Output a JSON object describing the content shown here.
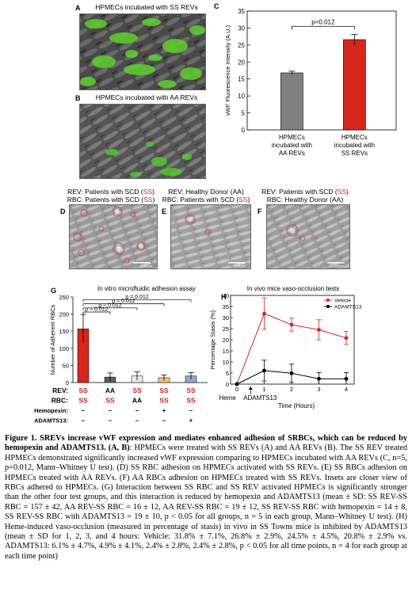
{
  "panels": {
    "A": {
      "label": "A",
      "title": "HPMECs incubated with SS REVs"
    },
    "B": {
      "label": "B",
      "title": "HPMECs incubated with AA REVs"
    },
    "D": {
      "label": "D",
      "line1_pre": "REV: Patients with SCD (",
      "line1_tag": "SS",
      "line1_post": ")",
      "line2_pre": "RBC: Patients with SCD (",
      "line2_tag": "SS",
      "line2_post": ")",
      "scale": "100 µm"
    },
    "E": {
      "label": "E",
      "line1_pre": "REV: Healthy Donor (",
      "line1_tag": "AA",
      "line1_post": ")",
      "line2_pre": "RBC: Patients with SCD (",
      "line2_tag": "SS",
      "line2_post": ")",
      "scale": "100 µm"
    },
    "F": {
      "label": "F",
      "line1_pre": "REV: Patients with SCD (",
      "line1_tag": "SS",
      "line1_post": ")",
      "line2_pre": "RBC: Healthy Donor (",
      "line2_tag": "AA",
      "line2_post": ")",
      "scale": "100 µm"
    }
  },
  "chart_data": [
    {
      "id": "C",
      "label": "C",
      "type": "bar",
      "ylabel": "vWF Fluorescence Intensity (A.U.)",
      "ylim": [
        0,
        35
      ],
      "yticks": [
        0,
        5,
        10,
        15,
        20,
        25,
        30,
        35
      ],
      "categories": [
        [
          "HPMECs",
          "incubated with",
          "AA REVs"
        ],
        [
          "HPMECs",
          "incubated with",
          "SS REVs"
        ]
      ],
      "values": [
        16.8,
        26.6
      ],
      "errors": [
        0.5,
        1.5
      ],
      "colors": [
        "#808080",
        "#d9241b"
      ],
      "annotations": [
        "p=0.012"
      ]
    },
    {
      "id": "G",
      "label": "G",
      "type": "bar",
      "title": "In vitro microfluidic adhesion assay",
      "ylabel": "Number of Adherent RBCs",
      "ylim": [
        0,
        250
      ],
      "yticks": [
        0,
        50,
        100,
        150,
        200,
        250
      ],
      "values": [
        157,
        16,
        19,
        14,
        19
      ],
      "errors": [
        42,
        12,
        12,
        8,
        10
      ],
      "colors": [
        "#d9241b",
        "#606060",
        "#e8e8e8",
        "#f1c27d",
        "#8fa8d6"
      ],
      "pvalues": [
        "p = 0.012",
        "p = 0.012",
        "p = 0.012",
        "p = 0.012"
      ],
      "rows": [
        {
          "name": "REV:",
          "values": [
            "SS",
            "AA",
            "SS",
            "SS",
            "SS"
          ],
          "red": [
            true,
            false,
            true,
            true,
            true
          ]
        },
        {
          "name": "RBC:",
          "values": [
            "SS",
            "SS",
            "AA",
            "SS",
            "SS"
          ],
          "red": [
            true,
            true,
            false,
            true,
            true
          ]
        },
        {
          "name": "Hemopexin:",
          "values": [
            "–",
            "–",
            "–",
            "+",
            "–"
          ]
        },
        {
          "name": "ADAMTS13:",
          "values": [
            "–",
            "–",
            "–",
            "–",
            "+"
          ]
        }
      ]
    },
    {
      "id": "H",
      "label": "H",
      "type": "line",
      "title": "In vivo mice vaso-occlusion tests",
      "ylabel": "Percentage Stasis (%)",
      "xlabel": "Time (Hours)",
      "ylim": [
        0,
        40
      ],
      "yticks": [
        0,
        5,
        10,
        15,
        20,
        25,
        30,
        35,
        40
      ],
      "xlim": [
        0,
        4
      ],
      "x": [
        0,
        1,
        2,
        3,
        4
      ],
      "series": [
        {
          "name": "Vehicle",
          "color": "#d9241b",
          "values": [
            0,
            31.8,
            26.8,
            24.5,
            20.8
          ],
          "errors": [
            0,
            7.1,
            2.9,
            4.5,
            2.9
          ]
        },
        {
          "name": "ADAMTS13",
          "color": "#000000",
          "values": [
            0,
            6.1,
            4.9,
            2.4,
            2.4
          ],
          "errors": [
            0,
            4.7,
            4.1,
            2.8,
            2.8
          ]
        }
      ],
      "annotations": [
        "Heme",
        "ADAMTS13"
      ],
      "legend": "top-right"
    }
  ],
  "caption": {
    "title": "Figure 1. SREVs increase vWF expression and mediates enhanced adhesion of SRBCs, which can be reduced by hemopexin and ADAMTS13. (A, B)",
    "body": ": HPMECs were treated with SS REVs (A) and AA REVs (B). The SS REV treated HPMECs demonstrated significantly increased vWF expression comparing to HPMECs incubated with AA REVs (C, n=5, p=0.012, Mann–Whitney U test). (D) SS RBC adhesion on HPMECs activated with SS REVs. (E) SS RBCs adhesion on HPMECs treated with AA REVs. (F) AA RBCs adhesion on HPMECs treated with SS REVs. Insets are closer view of RBCs adhered to HPMECs. (G) Interaction between SS RBC and SS REV activated HPMECs is significantly stronger than the other four test groups, and this interaction is reduced by hemopexin and ADAMTS13 (mean ± SD: SS REV-SS RBC = 157 ± 42, AA REV-SS RBC = 16 ± 12, AA REV-SS RBC = 19 ± 12, SS REV-SS RBC with hemopexin = 14 ± 8, SS REV-SS RBC with ADAMTS13 = 19 ± 10, p < 0.05 for all groups, n = 5 in each group, Mann–Whitney U test). (H) Heme-induced vaso-occlusion (measured in percentage of stasis) in vivo in SS Towns mice is inhibited by ADAMTS13 (mean ± SD for 1, 2, 3, and 4 hours: Vehicle: 31.8% ± 7.1%, 26.8% ± 2.9%, 24.5% ± 4.5%, 20.8% ± 2.9% vs. ADAMTS13: 6.1% ± 4.7%, 4.9% ± 4.1%, 2.4% ± 2.8%, 2.4% ± 2.8%, p < 0.05 for all time points, n = 4 for each group at each time point)"
  }
}
